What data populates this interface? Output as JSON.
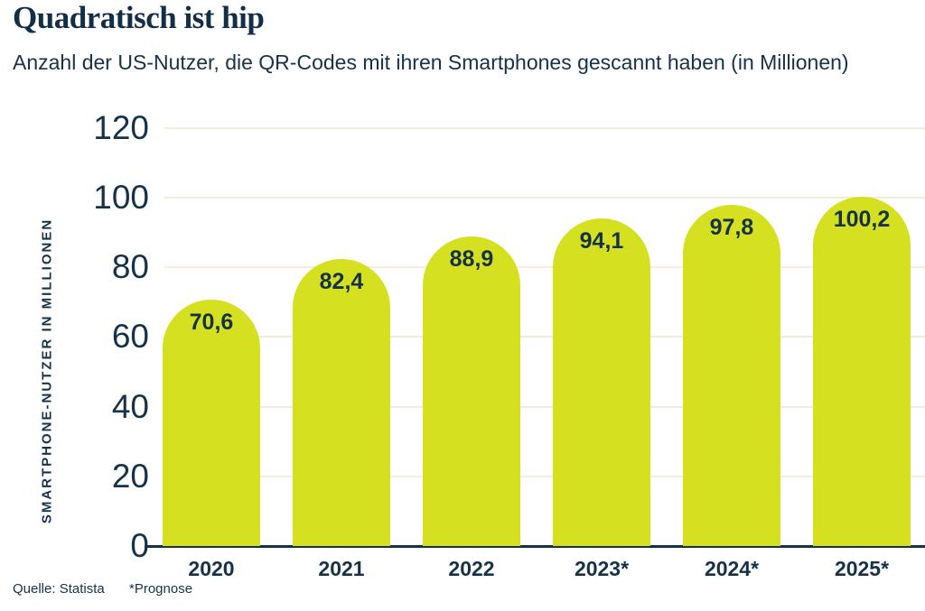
{
  "header": {
    "title": "Quadratisch ist hip",
    "subtitle": "Anzahl der US-Nutzer, die QR-Codes mit ihren Smartphones gescannt haben (in Millionen)"
  },
  "chart_data": {
    "type": "bar",
    "title": "Quadratisch ist hip",
    "subtitle": "Anzahl der US-Nutzer, die QR-Codes mit ihren Smartphones gescannt haben (in Millionen)",
    "categories": [
      "2020",
      "2021",
      "2022",
      "2023*",
      "2024*",
      "2025*"
    ],
    "values": [
      70.6,
      82.4,
      88.9,
      94.1,
      97.8,
      100.2
    ],
    "value_labels": [
      "70,6",
      "82,4",
      "88,9",
      "94,1",
      "97,8",
      "100,2"
    ],
    "xlabel": "",
    "ylabel": "SMARTPHONE-NUTZER IN MILLIONEN",
    "yticks": [
      0,
      20,
      40,
      60,
      80,
      100,
      120
    ],
    "ylim": [
      0,
      120
    ],
    "grid": "horizontal",
    "legend": "none"
  },
  "footer": {
    "source": "Quelle: Statista",
    "note": "*Prognose"
  },
  "colors": {
    "bar_fill": "#d5e020",
    "text_navy": "#16324a",
    "title_navy": "#132e47",
    "gridline": "#f2ecd8",
    "background": "#ffffff"
  }
}
